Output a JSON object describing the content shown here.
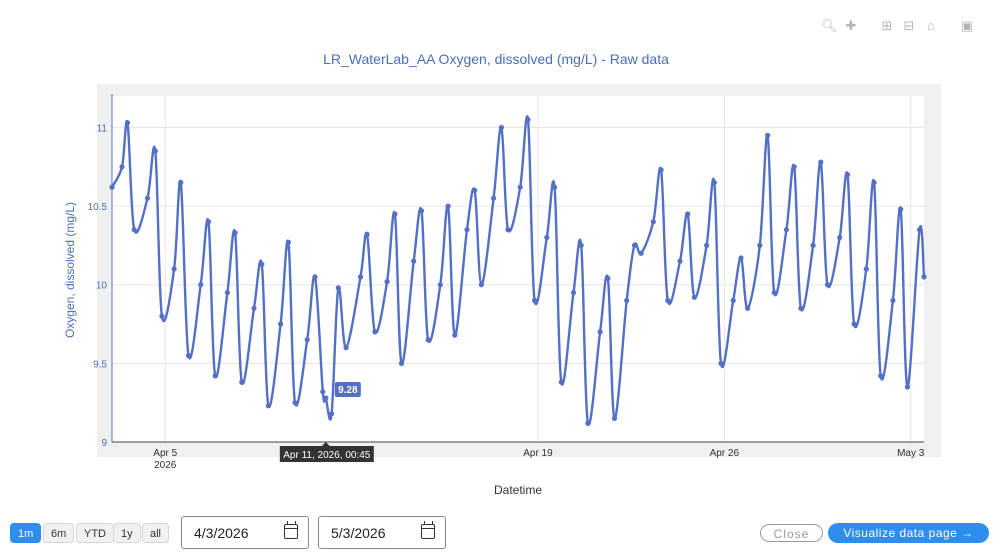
{
  "toolbar": {
    "icons": [
      "zoom-icon",
      "pan-icon",
      "zoom-in-icon",
      "zoom-out-icon",
      "reset-axes-icon",
      "camera-icon"
    ]
  },
  "chart_data": {
    "type": "line",
    "title": "LR_WaterLab_AA Oxygen, dissolved (mg/L) - Raw data",
    "xlabel": "Datetime",
    "ylabel": "Oxygen, dissolved (mg/L)",
    "ylim": [
      9.0,
      11.2
    ],
    "xlim": [
      "2026-04-03T00:00",
      "2026-05-03T12:00"
    ],
    "yticks": [
      {
        "value": 9,
        "label": "9"
      },
      {
        "value": 9.5,
        "label": "9.5"
      },
      {
        "value": 10,
        "label": "10"
      },
      {
        "value": 10.5,
        "label": "10.5"
      },
      {
        "value": 11,
        "label": "11"
      }
    ],
    "xticks": [
      {
        "value": "2026-04-05T00:00",
        "label": "Apr 5",
        "sublabel": "2026"
      },
      {
        "value": "2026-04-19T00:00",
        "label": "Apr 19",
        "sublabel": ""
      },
      {
        "value": "2026-04-26T00:00",
        "label": "Apr 26",
        "sublabel": ""
      },
      {
        "value": "2026-05-03T00:00",
        "label": "May 3",
        "sublabel": ""
      }
    ],
    "grid": true,
    "line_color": "#5470c6",
    "series": [
      {
        "name": "",
        "x": [
          "2026-04-03T00:00",
          "2026-04-03T09:00",
          "2026-04-03T14:00",
          "2026-04-03T20:00",
          "2026-04-04T08:00",
          "2026-04-04T15:00",
          "2026-04-04T21:00",
          "2026-04-05T08:00",
          "2026-04-05T14:00",
          "2026-04-05T21:00",
          "2026-04-06T08:00",
          "2026-04-06T15:00",
          "2026-04-06T21:00",
          "2026-04-07T08:00",
          "2026-04-07T15:00",
          "2026-04-07T21:00",
          "2026-04-08T08:00",
          "2026-04-08T15:00",
          "2026-04-08T21:00",
          "2026-04-09T08:00",
          "2026-04-09T15:00",
          "2026-04-09T21:00",
          "2026-04-10T08:00",
          "2026-04-10T15:00",
          "2026-04-10T22:00",
          "2026-04-11T00:45",
          "2026-04-11T06:00",
          "2026-04-11T12:00",
          "2026-04-11T19:00",
          "2026-04-12T08:00",
          "2026-04-12T14:00",
          "2026-04-12T21:00",
          "2026-04-13T08:00",
          "2026-04-13T15:00",
          "2026-04-13T21:00",
          "2026-04-14T08:00",
          "2026-04-14T15:00",
          "2026-04-14T21:00",
          "2026-04-15T08:00",
          "2026-04-15T15:00",
          "2026-04-15T21:00",
          "2026-04-16T08:00",
          "2026-04-16T15:00",
          "2026-04-16T21:00",
          "2026-04-17T08:00",
          "2026-04-17T15:00",
          "2026-04-17T21:00",
          "2026-04-18T08:00",
          "2026-04-18T15:00",
          "2026-04-18T21:00",
          "2026-04-19T08:00",
          "2026-04-19T15:00",
          "2026-04-19T21:00",
          "2026-04-20T08:00",
          "2026-04-20T15:00",
          "2026-04-20T21:00",
          "2026-04-21T08:00",
          "2026-04-21T15:00",
          "2026-04-21T21:00",
          "2026-04-22T08:00",
          "2026-04-22T15:00",
          "2026-04-22T21:00",
          "2026-04-23T08:00",
          "2026-04-23T15:00",
          "2026-04-23T21:00",
          "2026-04-24T08:00",
          "2026-04-24T15:00",
          "2026-04-24T21:00",
          "2026-04-25T08:00",
          "2026-04-25T15:00",
          "2026-04-25T21:00",
          "2026-04-26T08:00",
          "2026-04-26T15:00",
          "2026-04-26T21:00",
          "2026-04-27T08:00",
          "2026-04-27T15:00",
          "2026-04-27T21:00",
          "2026-04-28T08:00",
          "2026-04-28T15:00",
          "2026-04-28T21:00",
          "2026-04-29T08:00",
          "2026-04-29T15:00",
          "2026-04-29T21:00",
          "2026-04-30T08:00",
          "2026-04-30T15:00",
          "2026-04-30T21:00",
          "2026-05-01T08:00",
          "2026-05-01T15:00",
          "2026-05-01T21:00",
          "2026-05-02T08:00",
          "2026-05-02T15:00",
          "2026-05-02T21:00",
          "2026-05-03T08:00",
          "2026-05-03T12:00"
        ],
        "y": [
          10.62,
          10.75,
          11.03,
          10.35,
          10.55,
          10.85,
          9.8,
          10.1,
          10.65,
          9.55,
          10.0,
          10.4,
          9.42,
          9.95,
          10.33,
          9.38,
          9.85,
          10.13,
          9.23,
          9.75,
          10.27,
          9.25,
          9.65,
          10.05,
          9.32,
          9.28,
          9.18,
          9.98,
          9.6,
          10.05,
          10.32,
          9.7,
          10.02,
          10.45,
          9.5,
          10.15,
          10.47,
          9.65,
          10.0,
          10.5,
          9.68,
          10.35,
          10.6,
          10.0,
          10.55,
          11.0,
          10.35,
          10.62,
          11.05,
          9.9,
          10.3,
          10.62,
          9.38,
          9.95,
          10.25,
          9.12,
          9.7,
          10.04,
          9.15,
          9.9,
          10.25,
          10.2,
          10.4,
          10.73,
          9.9,
          10.15,
          10.45,
          9.92,
          10.25,
          10.65,
          9.5,
          9.9,
          10.17,
          9.85,
          10.25,
          10.95,
          9.95,
          10.35,
          10.75,
          9.85,
          10.25,
          10.78,
          10.0,
          10.3,
          10.7,
          9.75,
          10.1,
          10.65,
          9.42,
          9.9,
          10.48,
          9.35,
          10.35,
          10.05
        ]
      }
    ],
    "tooltip": {
      "value_label": "9.28",
      "x_label": "Apr 11, 2026, 00:45",
      "index": 25
    }
  },
  "controls": {
    "range_buttons": [
      {
        "label": "1m",
        "active": true
      },
      {
        "label": "6m",
        "active": false
      },
      {
        "label": "YTD",
        "active": false
      },
      {
        "label": "1y",
        "active": false
      },
      {
        "label": "all",
        "active": false
      }
    ],
    "start_date": "4/3/2026",
    "end_date": "5/3/2026",
    "close_label": "Close",
    "visualize_label": "Visualize data page →"
  }
}
